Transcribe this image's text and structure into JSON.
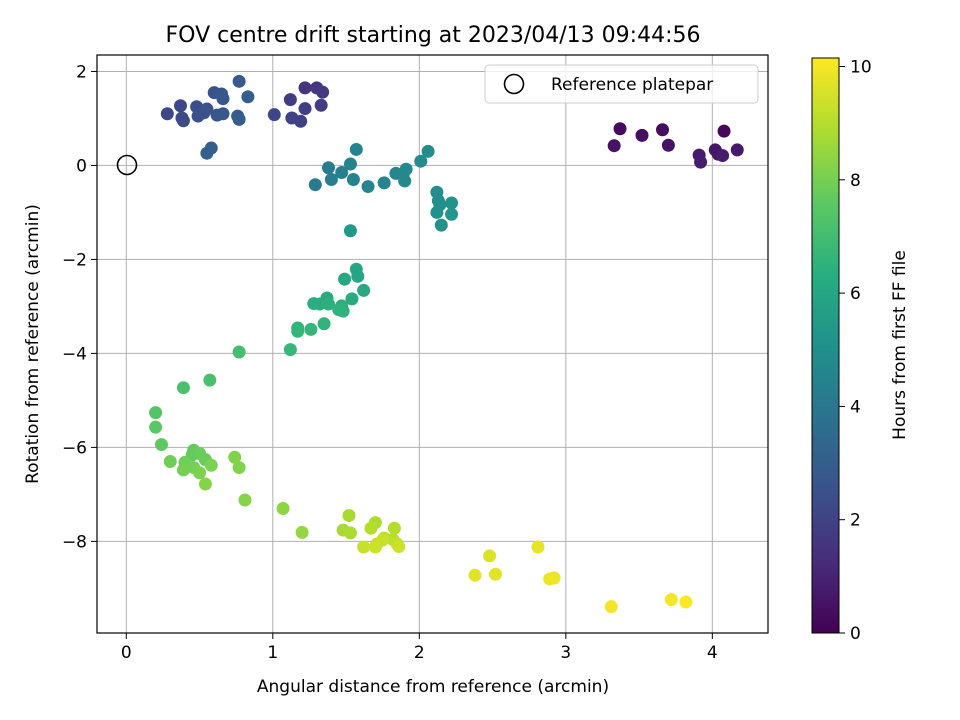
{
  "chart_data": {
    "type": "scatter",
    "title": "FOV centre drift starting at 2023/04/13 09:44:56",
    "xlabel": "Angular distance from reference (arcmin)",
    "ylabel": "Rotation from reference (arcmin)",
    "xlim": [
      -0.2,
      4.38
    ],
    "ylim": [
      -9.95,
      2.35
    ],
    "xticks": [
      0,
      1,
      2,
      3,
      4
    ],
    "yticks": [
      2,
      0,
      -2,
      -4,
      -6,
      -8
    ],
    "ytick_labels": [
      "2",
      "0",
      "−2",
      "−4",
      "−6",
      "−8"
    ],
    "grid": true,
    "legend": {
      "placement": "top-right",
      "label": "Reference platepar"
    },
    "reference_point": {
      "x": 0,
      "y": 0
    },
    "colorbar": {
      "label": "Hours from first FF file",
      "colormap": "viridis",
      "range": [
        0,
        10.15
      ],
      "ticks": [
        0,
        2,
        4,
        6,
        8,
        10
      ]
    },
    "points": [
      {
        "x": 4.08,
        "y": 0.73,
        "h": 0.2
      },
      {
        "x": 3.37,
        "y": 0.78,
        "h": 0.3
      },
      {
        "x": 3.66,
        "y": 0.76,
        "h": 0.35
      },
      {
        "x": 3.52,
        "y": 0.64,
        "h": 0.4
      },
      {
        "x": 3.33,
        "y": 0.42,
        "h": 0.5
      },
      {
        "x": 3.7,
        "y": 0.43,
        "h": 0.5
      },
      {
        "x": 4.02,
        "y": 0.33,
        "h": 0.6
      },
      {
        "x": 4.04,
        "y": 0.24,
        "h": 0.65
      },
      {
        "x": 4.17,
        "y": 0.33,
        "h": 0.7
      },
      {
        "x": 3.91,
        "y": 0.22,
        "h": 0.75
      },
      {
        "x": 3.92,
        "y": 0.07,
        "h": 0.8
      },
      {
        "x": 4.07,
        "y": 0.21,
        "h": 0.8
      },
      {
        "x": 1.22,
        "y": 1.65,
        "h": 1.5
      },
      {
        "x": 1.3,
        "y": 1.65,
        "h": 1.6
      },
      {
        "x": 1.34,
        "y": 1.56,
        "h": 1.7
      },
      {
        "x": 1.12,
        "y": 1.4,
        "h": 1.8
      },
      {
        "x": 1.33,
        "y": 1.28,
        "h": 1.8
      },
      {
        "x": 1.22,
        "y": 1.21,
        "h": 1.9
      },
      {
        "x": 1.13,
        "y": 1.01,
        "h": 2.0
      },
      {
        "x": 1.19,
        "y": 0.94,
        "h": 2.0
      },
      {
        "x": 1.01,
        "y": 1.08,
        "h": 2.1
      },
      {
        "x": 0.28,
        "y": 1.1,
        "h": 2.2
      },
      {
        "x": 0.37,
        "y": 1.27,
        "h": 2.2
      },
      {
        "x": 0.38,
        "y": 1.01,
        "h": 2.3
      },
      {
        "x": 0.39,
        "y": 0.95,
        "h": 2.3
      },
      {
        "x": 0.48,
        "y": 1.25,
        "h": 2.4
      },
      {
        "x": 0.49,
        "y": 1.05,
        "h": 2.5
      },
      {
        "x": 0.53,
        "y": 1.12,
        "h": 2.5
      },
      {
        "x": 0.55,
        "y": 1.2,
        "h": 2.6
      },
      {
        "x": 0.6,
        "y": 1.55,
        "h": 2.6
      },
      {
        "x": 0.62,
        "y": 1.07,
        "h": 2.7
      },
      {
        "x": 0.65,
        "y": 1.52,
        "h": 2.7
      },
      {
        "x": 0.66,
        "y": 1.42,
        "h": 2.8
      },
      {
        "x": 0.66,
        "y": 1.1,
        "h": 2.8
      },
      {
        "x": 0.77,
        "y": 1.79,
        "h": 2.9
      },
      {
        "x": 0.76,
        "y": 1.05,
        "h": 2.9
      },
      {
        "x": 0.77,
        "y": 0.98,
        "h": 3.0
      },
      {
        "x": 0.83,
        "y": 1.46,
        "h": 3.0
      },
      {
        "x": 0.55,
        "y": 0.26,
        "h": 3.1
      },
      {
        "x": 0.58,
        "y": 0.37,
        "h": 3.1
      },
      {
        "x": 1.29,
        "y": -0.41,
        "h": 4.2
      },
      {
        "x": 1.38,
        "y": -0.05,
        "h": 4.3
      },
      {
        "x": 1.4,
        "y": -0.3,
        "h": 4.3
      },
      {
        "x": 1.47,
        "y": -0.15,
        "h": 4.4
      },
      {
        "x": 1.53,
        "y": 0.03,
        "h": 4.5
      },
      {
        "x": 1.55,
        "y": -0.3,
        "h": 4.5
      },
      {
        "x": 1.57,
        "y": 0.34,
        "h": 4.5
      },
      {
        "x": 1.65,
        "y": -0.45,
        "h": 4.6
      },
      {
        "x": 1.76,
        "y": -0.37,
        "h": 4.6
      },
      {
        "x": 1.84,
        "y": -0.17,
        "h": 4.7
      },
      {
        "x": 1.89,
        "y": -0.18,
        "h": 4.7
      },
      {
        "x": 1.91,
        "y": -0.08,
        "h": 4.8
      },
      {
        "x": 1.9,
        "y": -0.33,
        "h": 4.8
      },
      {
        "x": 2.01,
        "y": 0.09,
        "h": 4.9
      },
      {
        "x": 2.06,
        "y": 0.3,
        "h": 4.9
      },
      {
        "x": 2.12,
        "y": -0.57,
        "h": 5.0
      },
      {
        "x": 2.13,
        "y": -0.75,
        "h": 5.0
      },
      {
        "x": 2.14,
        "y": -0.84,
        "h": 5.1
      },
      {
        "x": 2.12,
        "y": -1.0,
        "h": 5.1
      },
      {
        "x": 2.15,
        "y": -1.27,
        "h": 5.2
      },
      {
        "x": 2.22,
        "y": -0.8,
        "h": 5.2
      },
      {
        "x": 2.22,
        "y": -1.04,
        "h": 5.3
      },
      {
        "x": 1.53,
        "y": -1.39,
        "h": 5.4
      },
      {
        "x": 1.57,
        "y": -2.21,
        "h": 6.0
      },
      {
        "x": 1.58,
        "y": -2.36,
        "h": 6.0
      },
      {
        "x": 1.49,
        "y": -2.42,
        "h": 6.1
      },
      {
        "x": 1.62,
        "y": -2.66,
        "h": 6.1
      },
      {
        "x": 1.37,
        "y": -2.82,
        "h": 6.2
      },
      {
        "x": 1.54,
        "y": -2.84,
        "h": 6.2
      },
      {
        "x": 1.28,
        "y": -2.94,
        "h": 6.3
      },
      {
        "x": 1.32,
        "y": -2.95,
        "h": 6.3
      },
      {
        "x": 1.38,
        "y": -2.95,
        "h": 6.4
      },
      {
        "x": 1.47,
        "y": -2.99,
        "h": 6.4
      },
      {
        "x": 1.45,
        "y": -3.07,
        "h": 6.5
      },
      {
        "x": 1.48,
        "y": -3.1,
        "h": 6.5
      },
      {
        "x": 1.35,
        "y": -3.37,
        "h": 6.6
      },
      {
        "x": 1.17,
        "y": -3.46,
        "h": 6.6
      },
      {
        "x": 1.17,
        "y": -3.53,
        "h": 6.7
      },
      {
        "x": 1.26,
        "y": -3.49,
        "h": 6.7
      },
      {
        "x": 1.12,
        "y": -3.92,
        "h": 6.8
      },
      {
        "x": 0.77,
        "y": -3.97,
        "h": 7.1
      },
      {
        "x": 0.39,
        "y": -4.73,
        "h": 7.2
      },
      {
        "x": 0.57,
        "y": -4.57,
        "h": 7.2
      },
      {
        "x": 0.2,
        "y": -5.26,
        "h": 7.4
      },
      {
        "x": 0.2,
        "y": -5.57,
        "h": 7.5
      },
      {
        "x": 0.24,
        "y": -5.94,
        "h": 7.6
      },
      {
        "x": 0.46,
        "y": -6.06,
        "h": 7.7
      },
      {
        "x": 0.45,
        "y": -6.16,
        "h": 7.7
      },
      {
        "x": 0.5,
        "y": -6.13,
        "h": 7.8
      },
      {
        "x": 0.54,
        "y": -6.26,
        "h": 7.8
      },
      {
        "x": 0.4,
        "y": -6.32,
        "h": 7.9
      },
      {
        "x": 0.3,
        "y": -6.3,
        "h": 7.9
      },
      {
        "x": 0.39,
        "y": -6.48,
        "h": 8.0
      },
      {
        "x": 0.46,
        "y": -6.43,
        "h": 8.0
      },
      {
        "x": 0.5,
        "y": -6.54,
        "h": 8.1
      },
      {
        "x": 0.58,
        "y": -6.38,
        "h": 8.1
      },
      {
        "x": 0.74,
        "y": -6.21,
        "h": 8.2
      },
      {
        "x": 0.77,
        "y": -6.43,
        "h": 8.2
      },
      {
        "x": 0.54,
        "y": -6.78,
        "h": 8.3
      },
      {
        "x": 0.81,
        "y": -7.12,
        "h": 8.3
      },
      {
        "x": 1.07,
        "y": -7.3,
        "h": 8.4
      },
      {
        "x": 1.2,
        "y": -7.81,
        "h": 8.5
      },
      {
        "x": 1.52,
        "y": -7.45,
        "h": 8.8
      },
      {
        "x": 1.48,
        "y": -7.76,
        "h": 8.8
      },
      {
        "x": 1.53,
        "y": -7.82,
        "h": 8.9
      },
      {
        "x": 1.7,
        "y": -7.6,
        "h": 8.9
      },
      {
        "x": 1.67,
        "y": -7.72,
        "h": 9.0
      },
      {
        "x": 1.83,
        "y": -7.72,
        "h": 9.0
      },
      {
        "x": 1.76,
        "y": -7.93,
        "h": 9.1
      },
      {
        "x": 1.82,
        "y": -7.96,
        "h": 9.1
      },
      {
        "x": 1.85,
        "y": -8.06,
        "h": 9.2
      },
      {
        "x": 1.71,
        "y": -8.06,
        "h": 9.2
      },
      {
        "x": 1.75,
        "y": -7.97,
        "h": 9.3
      },
      {
        "x": 1.62,
        "y": -8.12,
        "h": 9.3
      },
      {
        "x": 1.86,
        "y": -8.11,
        "h": 9.4
      },
      {
        "x": 1.7,
        "y": -8.12,
        "h": 9.4
      },
      {
        "x": 2.48,
        "y": -8.31,
        "h": 9.6
      },
      {
        "x": 2.38,
        "y": -8.72,
        "h": 9.7
      },
      {
        "x": 2.52,
        "y": -8.7,
        "h": 9.7
      },
      {
        "x": 2.81,
        "y": -8.12,
        "h": 9.8
      },
      {
        "x": 2.89,
        "y": -8.8,
        "h": 9.85
      },
      {
        "x": 2.92,
        "y": -8.78,
        "h": 9.9
      },
      {
        "x": 3.31,
        "y": -9.39,
        "h": 10.0
      },
      {
        "x": 3.72,
        "y": -9.24,
        "h": 10.05
      },
      {
        "x": 3.82,
        "y": -9.29,
        "h": 10.1
      }
    ]
  }
}
